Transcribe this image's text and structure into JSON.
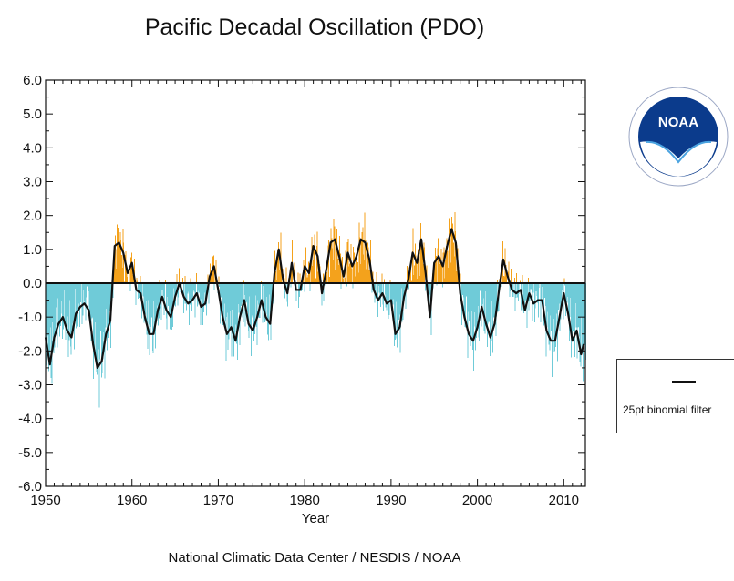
{
  "title": "Pacific Decadal Oscillation (PDO)",
  "credit": "National Climatic Data Center / NESDIS / NOAA",
  "logo_text": "NOAA",
  "legend_label": "25pt binomial filter",
  "colors": {
    "positive": "#f4a21c",
    "negative": "#6fcbd8",
    "filter_line": "#111111"
  },
  "chart_data": {
    "type": "area",
    "title": "Pacific Decadal Oscillation (PDO)",
    "xlabel": "Year",
    "ylabel": "",
    "xlim": [
      1950,
      2012.5
    ],
    "ylim": [
      -6.0,
      6.0
    ],
    "x_ticks": [
      1950,
      1960,
      1970,
      1980,
      1990,
      2000,
      2010
    ],
    "y_ticks": [
      "-6.0",
      "-5.0",
      "-4.0",
      "-3.0",
      "-2.0",
      "-1.0",
      "0.0",
      "1.0",
      "2.0",
      "3.0",
      "4.0",
      "5.0",
      "6.0"
    ],
    "series": [
      {
        "name": "25pt binomial filter",
        "x": [
          1950.0,
          1950.5,
          1951.0,
          1951.5,
          1952.0,
          1952.5,
          1953.0,
          1953.5,
          1954.0,
          1954.5,
          1955.0,
          1955.5,
          1956.0,
          1956.5,
          1957.0,
          1957.5,
          1958.0,
          1958.5,
          1959.0,
          1959.5,
          1960.0,
          1960.5,
          1961.0,
          1961.5,
          1962.0,
          1962.5,
          1963.0,
          1963.5,
          1964.0,
          1964.5,
          1965.0,
          1965.5,
          1966.0,
          1966.5,
          1967.0,
          1967.5,
          1968.0,
          1968.5,
          1969.0,
          1969.5,
          1970.0,
          1970.5,
          1971.0,
          1971.5,
          1972.0,
          1972.5,
          1973.0,
          1973.5,
          1974.0,
          1974.5,
          1975.0,
          1975.5,
          1976.0,
          1976.5,
          1977.0,
          1977.5,
          1978.0,
          1978.5,
          1979.0,
          1979.5,
          1980.0,
          1980.5,
          1981.0,
          1981.5,
          1982.0,
          1982.5,
          1983.0,
          1983.5,
          1984.0,
          1984.5,
          1985.0,
          1985.5,
          1986.0,
          1986.5,
          1987.0,
          1987.5,
          1988.0,
          1988.5,
          1989.0,
          1989.5,
          1990.0,
          1990.5,
          1991.0,
          1991.5,
          1992.0,
          1992.5,
          1993.0,
          1993.5,
          1994.0,
          1994.5,
          1995.0,
          1995.5,
          1996.0,
          1996.5,
          1997.0,
          1997.5,
          1998.0,
          1998.5,
          1999.0,
          1999.5,
          2000.0,
          2000.5,
          2001.0,
          2001.5,
          2002.0,
          2002.5,
          2003.0,
          2003.5,
          2004.0,
          2004.5,
          2005.0,
          2005.5,
          2006.0,
          2006.5,
          2007.0,
          2007.5,
          2008.0,
          2008.5,
          2009.0,
          2009.5,
          2010.0,
          2010.5,
          2011.0,
          2011.5,
          2012.0,
          2012.3
        ],
        "y": [
          -1.6,
          -2.4,
          -1.6,
          -1.2,
          -1.0,
          -1.4,
          -1.6,
          -0.9,
          -0.7,
          -0.6,
          -0.8,
          -1.8,
          -2.5,
          -2.3,
          -1.5,
          -1.1,
          1.1,
          1.2,
          0.9,
          0.3,
          0.6,
          -0.2,
          -0.3,
          -1.0,
          -1.5,
          -1.5,
          -0.8,
          -0.4,
          -0.8,
          -1.0,
          -0.4,
          0.0,
          -0.4,
          -0.6,
          -0.5,
          -0.3,
          -0.7,
          -0.6,
          0.2,
          0.5,
          -0.2,
          -1.0,
          -1.5,
          -1.3,
          -1.7,
          -1.0,
          -0.5,
          -1.2,
          -1.4,
          -1.0,
          -0.5,
          -1.0,
          -1.2,
          0.3,
          1.0,
          0.1,
          -0.3,
          0.6,
          -0.2,
          -0.2,
          0.5,
          0.3,
          1.1,
          0.8,
          -0.3,
          0.4,
          1.2,
          1.3,
          0.8,
          0.2,
          0.9,
          0.5,
          0.8,
          1.3,
          1.2,
          0.7,
          -0.2,
          -0.5,
          -0.3,
          -0.6,
          -0.5,
          -1.5,
          -1.3,
          -0.4,
          0.1,
          0.9,
          0.6,
          1.3,
          0.3,
          -1.0,
          0.6,
          0.8,
          0.5,
          1.1,
          1.6,
          1.2,
          -0.3,
          -1.0,
          -1.5,
          -1.7,
          -1.3,
          -0.7,
          -1.2,
          -1.6,
          -1.2,
          -0.2,
          0.7,
          0.2,
          -0.2,
          -0.3,
          -0.2,
          -0.8,
          -0.3,
          -0.6,
          -0.5,
          -0.5,
          -1.4,
          -1.7,
          -1.7,
          -1.0,
          -0.3,
          -0.9,
          -1.7,
          -1.4,
          -2.1,
          -1.8
        ]
      }
    ],
    "grid": false,
    "legend_position": "right"
  }
}
